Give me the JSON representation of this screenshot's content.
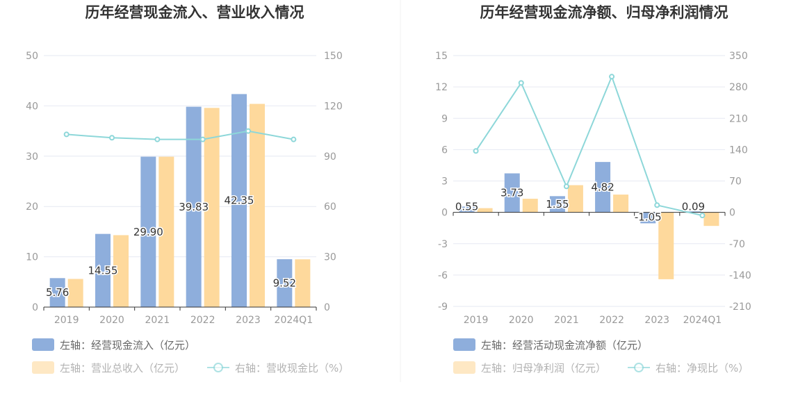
{
  "colors": {
    "bar_primary": "#8eaedc",
    "bar_secondary": "#fed99c",
    "line": "#8dd7d9",
    "grid": "#e6e9f2",
    "axis": "#333333",
    "tick": "#999999",
    "legend_text": "#666666",
    "legend_text_muted": "#b2b2b2"
  },
  "chart_data": [
    {
      "type": "bar",
      "title": "历年经营现金流入、营业收入情况",
      "categories": [
        "2019",
        "2020",
        "2021",
        "2022",
        "2023",
        "2024Q1"
      ],
      "left_axis": {
        "range": [
          0,
          50
        ],
        "ticks": [
          "50",
          "40",
          "30",
          "20",
          "10",
          "0"
        ]
      },
      "right_axis": {
        "range": [
          0,
          150
        ],
        "ticks": [
          "150",
          "120",
          "90",
          "60",
          "30",
          "0"
        ]
      },
      "series": [
        {
          "name": "左轴：经营现金流入（亿元）",
          "axis": "left",
          "kind": "bar",
          "values": [
            5.76,
            14.55,
            29.9,
            39.83,
            42.35,
            9.52
          ],
          "labels": [
            "5.76",
            "14.55",
            "29.90",
            "39.83",
            "42.35",
            "9.52"
          ]
        },
        {
          "name": "左轴：营业总收入（亿元）",
          "axis": "left",
          "kind": "bar",
          "values": [
            5.6,
            14.3,
            29.9,
            39.6,
            40.4,
            9.5
          ]
        },
        {
          "name": "右轴：营收现金比（%）",
          "axis": "right",
          "kind": "line",
          "values": [
            103,
            101,
            100,
            100,
            105,
            100
          ]
        }
      ],
      "grid": true,
      "legend_position": "bottom-left"
    },
    {
      "type": "bar",
      "title": "历年经营现金流净额、归母净利润情况",
      "categories": [
        "2019",
        "2020",
        "2021",
        "2022",
        "2023",
        "2024Q1"
      ],
      "left_axis": {
        "range": [
          -9,
          15
        ],
        "ticks": [
          "15",
          "12",
          "9",
          "6",
          "3",
          "0",
          "-3",
          "-6",
          "-9"
        ]
      },
      "right_axis": {
        "range": [
          -210,
          350
        ],
        "ticks": [
          "350",
          "280",
          "210",
          "140",
          "70",
          "0",
          "-70",
          "-140",
          "-210"
        ]
      },
      "series": [
        {
          "name": "左轴：经营活动现金流净额（亿元）",
          "axis": "left",
          "kind": "bar",
          "values": [
            0.55,
            3.73,
            1.55,
            4.82,
            -1.05,
            0.09
          ],
          "labels": [
            "0.55",
            "3.73",
            "1.55",
            "4.82",
            "-1.05",
            "0.09"
          ]
        },
        {
          "name": "左轴：归母净利润（亿元）",
          "axis": "left",
          "kind": "bar",
          "values": [
            0.4,
            1.3,
            2.6,
            1.7,
            -6.4,
            -1.3
          ]
        },
        {
          "name": "右轴：净现比（%）",
          "axis": "right",
          "kind": "line",
          "values": [
            137,
            289,
            58,
            303,
            16,
            -7
          ]
        }
      ],
      "grid": true,
      "legend_position": "bottom-left"
    }
  ]
}
